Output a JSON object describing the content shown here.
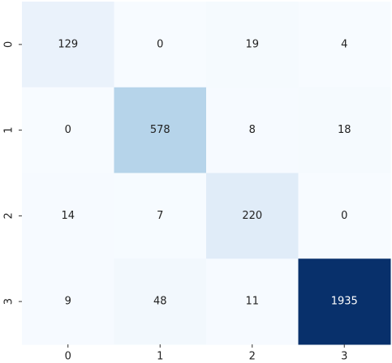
{
  "chart_data": {
    "type": "heatmap",
    "x_categories": [
      "0",
      "1",
      "2",
      "3"
    ],
    "y_categories": [
      "0",
      "1",
      "2",
      "3"
    ],
    "values": [
      [
        129,
        0,
        19,
        4
      ],
      [
        0,
        578,
        8,
        18
      ],
      [
        14,
        7,
        220,
        0
      ],
      [
        9,
        48,
        11,
        1935
      ]
    ],
    "colormap": "Blues"
  }
}
